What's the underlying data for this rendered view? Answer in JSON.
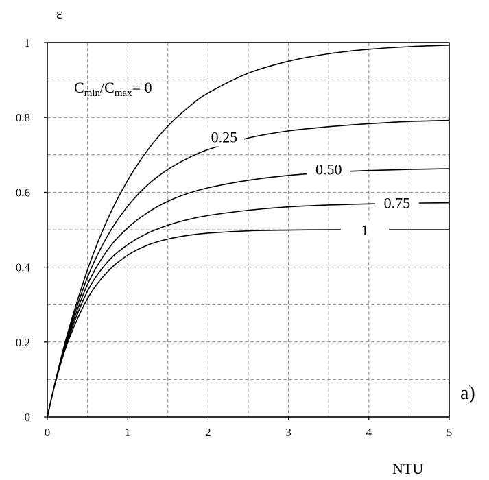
{
  "chart_data": {
    "type": "line",
    "title": "",
    "ylabel": "ε",
    "xlabel": "NTU",
    "xlim": [
      0,
      5
    ],
    "ylim": [
      0,
      1
    ],
    "x_ticks": [
      "0",
      "1",
      "2",
      "3",
      "4",
      "5"
    ],
    "y_ticks": [
      "0",
      "0.2",
      "0.4",
      "0.6",
      "0.8",
      "1"
    ],
    "grid": "dashed",
    "panel_label": "a)",
    "legend_title_parts": {
      "c1": "C",
      "sub1": "min",
      "slash": "/C",
      "sub2": "max",
      "eq": "= 0"
    },
    "x": [
      0,
      0.1,
      0.25,
      0.5,
      0.75,
      1,
      1.25,
      1.5,
      1.75,
      2,
      2.5,
      3,
      3.5,
      4,
      4.5,
      5
    ],
    "series": [
      {
        "name": "0",
        "values": [
          0,
          0.095,
          0.221,
          0.393,
          0.528,
          0.632,
          0.713,
          0.777,
          0.826,
          0.865,
          0.918,
          0.95,
          0.97,
          0.982,
          0.989,
          0.993
        ]
      },
      {
        "name": "0.25",
        "values": [
          0,
          0.094,
          0.215,
          0.373,
          0.484,
          0.563,
          0.62,
          0.661,
          0.691,
          0.714,
          0.745,
          0.764,
          0.775,
          0.783,
          0.789,
          0.792
        ]
      },
      {
        "name": "0.50",
        "values": [
          0,
          0.093,
          0.209,
          0.354,
          0.446,
          0.505,
          0.546,
          0.576,
          0.597,
          0.612,
          0.632,
          0.645,
          0.653,
          0.658,
          0.661,
          0.663
        ]
      },
      {
        "name": "0.75",
        "values": [
          0,
          0.092,
          0.203,
          0.336,
          0.414,
          0.46,
          0.491,
          0.512,
          0.527,
          0.538,
          0.552,
          0.561,
          0.566,
          0.569,
          0.571,
          0.572
        ]
      },
      {
        "name": "1",
        "values": [
          0,
          0.091,
          0.197,
          0.316,
          0.388,
          0.432,
          0.459,
          0.475,
          0.485,
          0.491,
          0.497,
          0.499,
          0.5,
          0.5,
          0.5,
          0.5
        ]
      }
    ]
  }
}
